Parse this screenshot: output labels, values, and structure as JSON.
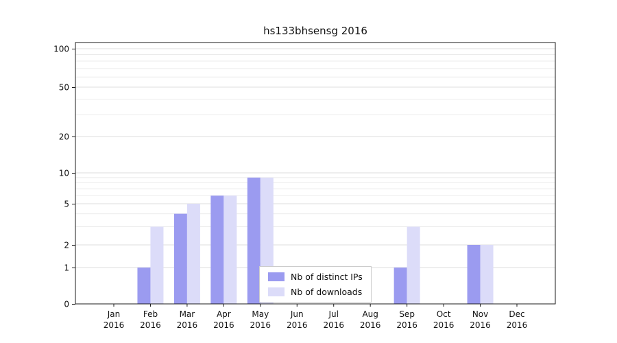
{
  "chart_data": {
    "type": "bar",
    "title": "hs133bhsensg 2016",
    "categories": [
      "Jan",
      "Feb",
      "Mar",
      "Apr",
      "May",
      "Jun",
      "Jul",
      "Aug",
      "Sep",
      "Oct",
      "Nov",
      "Dec"
    ],
    "category_year": "2016",
    "series": [
      {
        "name": "Nb of distinct IPs",
        "color": "#9b9bf0",
        "values": [
          0,
          1,
          4,
          6,
          9,
          0,
          0,
          0,
          1,
          0,
          2,
          0
        ]
      },
      {
        "name": "Nb of downloads",
        "color": "#dcdcf9",
        "values": [
          0,
          3,
          5,
          6,
          9,
          0,
          0,
          0,
          3,
          0,
          2,
          0
        ]
      }
    ],
    "yticks": [
      0,
      1,
      2,
      5,
      10,
      20,
      50,
      100
    ],
    "ylim": [
      0,
      100
    ],
    "yscale": "log-like (0, 1, 2, 5, 10, 20, 50, 100)",
    "grid": true,
    "legend_position": "lower center"
  }
}
